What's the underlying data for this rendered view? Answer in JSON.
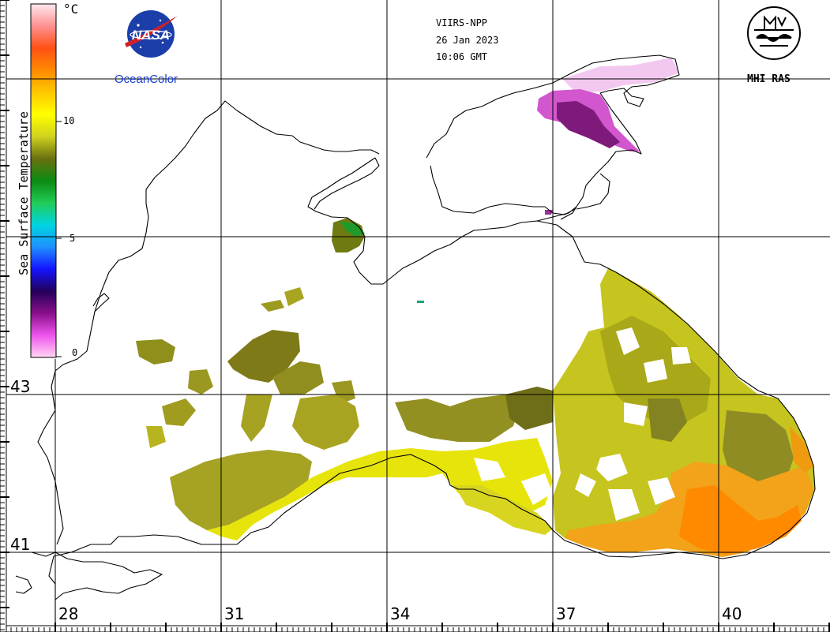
{
  "header": {
    "sensor": "VIIRS-NPP",
    "date": "26 Jan 2023",
    "time": "10:06 GMT"
  },
  "logos": {
    "nasa_mark": "NASA",
    "oceancolor": "OceanColor",
    "mhi": "MHI RAS"
  },
  "colorbar": {
    "title": "Sea Surface Temperature",
    "unit": "°C",
    "ticks": [
      "0",
      "5",
      "10"
    ],
    "stops": [
      "#ffd6f2",
      "#ee55ee",
      "#8a0f8a",
      "#22005a",
      "#1414ff",
      "#1e90ff",
      "#00d4e0",
      "#22cc55",
      "#0b8a12",
      "#6a7010",
      "#cfd21e",
      "#ffff00",
      "#ffc800",
      "#ff8a00",
      "#ff5014",
      "#ff9090",
      "#ffe8ee"
    ]
  },
  "latitudes": [
    "43",
    "41"
  ],
  "longitudes": [
    "28",
    "31",
    "34",
    "37",
    "40"
  ],
  "colors": {
    "coast": "#000000",
    "sst_low": "#8a2a8a",
    "sst_mid": "#a8a810",
    "sst_high": "#ff9a10"
  }
}
